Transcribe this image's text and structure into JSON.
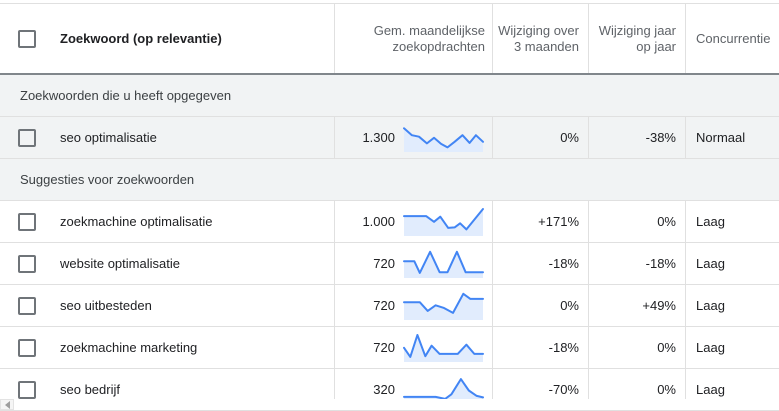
{
  "table": {
    "columns": {
      "keyword": "Zoekwoord (op relevantie)",
      "volume": "Gem. maandelijkse zoekopdrachten",
      "change_3m": "Wijziging over 3 maanden",
      "change_yoy": "Wijziging jaar op jaar",
      "competition": "Concurrentie"
    },
    "sections": [
      {
        "label": "Zoekwoorden die u heeft opgegeven",
        "shaded_rows": true,
        "rows": [
          {
            "keyword": "seo optimalisatie",
            "volume": "1.300",
            "change_3m": "0%",
            "change_yoy": "-38%",
            "competition": "Normaal",
            "trend": [
              [
                0,
                0.15
              ],
              [
                0.1,
                0.42
              ],
              [
                0.19,
                0.48
              ],
              [
                0.29,
                0.74
              ],
              [
                0.38,
                0.52
              ],
              [
                0.47,
                0.76
              ],
              [
                0.55,
                0.9
              ],
              [
                0.64,
                0.68
              ],
              [
                0.74,
                0.42
              ],
              [
                0.83,
                0.72
              ],
              [
                0.91,
                0.42
              ],
              [
                1,
                0.68
              ]
            ]
          }
        ]
      },
      {
        "label": "Suggesties voor zoekwoorden",
        "shaded_rows": false,
        "rows": [
          {
            "keyword": "zoekmachine optimalisatie",
            "volume": "1.000",
            "change_3m": "+171%",
            "change_yoy": "0%",
            "competition": "Laag",
            "trend": [
              [
                0,
                0.3
              ],
              [
                0.28,
                0.3
              ],
              [
                0.38,
                0.52
              ],
              [
                0.46,
                0.32
              ],
              [
                0.56,
                0.76
              ],
              [
                0.64,
                0.74
              ],
              [
                0.71,
                0.58
              ],
              [
                0.79,
                0.82
              ],
              [
                1,
                0.02
              ]
            ]
          },
          {
            "keyword": "website optimalisatie",
            "volume": "720",
            "change_3m": "-18%",
            "change_yoy": "-18%",
            "competition": "Laag",
            "trend": [
              [
                0,
                0.42
              ],
              [
                0.13,
                0.42
              ],
              [
                0.2,
                0.88
              ],
              [
                0.33,
                0.05
              ],
              [
                0.45,
                0.85
              ],
              [
                0.55,
                0.85
              ],
              [
                0.67,
                0.05
              ],
              [
                0.78,
                0.85
              ],
              [
                1,
                0.85
              ]
            ]
          },
          {
            "keyword": "seo uitbesteden",
            "volume": "720",
            "change_3m": "0%",
            "change_yoy": "+49%",
            "competition": "Laag",
            "trend": [
              [
                0,
                0.38
              ],
              [
                0.2,
                0.38
              ],
              [
                0.3,
                0.72
              ],
              [
                0.4,
                0.5
              ],
              [
                0.5,
                0.6
              ],
              [
                0.62,
                0.8
              ],
              [
                0.75,
                0.05
              ],
              [
                0.84,
                0.25
              ],
              [
                1,
                0.25
              ]
            ]
          },
          {
            "keyword": "zoekmachine marketing",
            "volume": "720",
            "change_3m": "-18%",
            "change_yoy": "0%",
            "competition": "Laag",
            "trend": [
              [
                0,
                0.52
              ],
              [
                0.08,
                0.88
              ],
              [
                0.17,
                0.02
              ],
              [
                0.27,
                0.85
              ],
              [
                0.35,
                0.44
              ],
              [
                0.45,
                0.76
              ],
              [
                0.68,
                0.76
              ],
              [
                0.79,
                0.4
              ],
              [
                0.89,
                0.76
              ],
              [
                1,
                0.76
              ]
            ]
          },
          {
            "keyword": "seo bedrijf",
            "volume": "320",
            "change_3m": "-70%",
            "change_yoy": "0%",
            "competition": "Laag",
            "trend": [
              [
                0,
                0.8
              ],
              [
                0.4,
                0.8
              ],
              [
                0.52,
                0.88
              ],
              [
                0.6,
                0.7
              ],
              [
                0.72,
                0.1
              ],
              [
                0.82,
                0.55
              ],
              [
                0.92,
                0.76
              ],
              [
                1,
                0.82
              ]
            ]
          }
        ]
      }
    ]
  },
  "sparkline": {
    "line_color": "#4285f4",
    "fill_color": "#e1ecfd"
  },
  "colors": {
    "header_text": "#5f6368",
    "body_text": "#202124",
    "section_bg": "#f1f3f4",
    "divider": "#e0e0e0",
    "header_divider": "#80868b"
  }
}
